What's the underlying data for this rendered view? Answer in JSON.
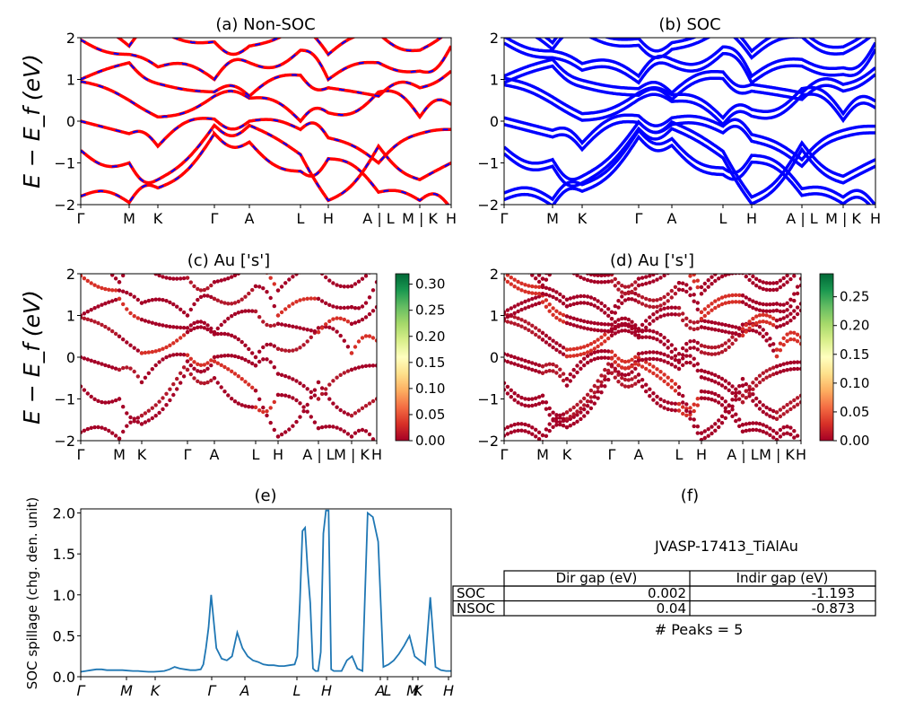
{
  "panels": {
    "a": {
      "title": "(a) Non-SOC"
    },
    "b": {
      "title": "(b) SOC"
    },
    "c": {
      "title": "(c)  Au ['s']"
    },
    "d": {
      "title": "(d) Au ['s']"
    },
    "e": {
      "title": "(e)"
    },
    "f": {
      "title": "(f)"
    }
  },
  "ylabel_energy": "E − E_f (eV)",
  "ylabel_spillage": "SOC spillage (chg. den. unit)",
  "kpath_labels": [
    "Γ",
    "M",
    "K",
    "Γ",
    "A",
    "L",
    "H",
    "A | L",
    "M | K",
    "H"
  ],
  "colors": {
    "nonsoc_solid": "#ff0000",
    "nonsoc_dash": "#0000ff",
    "soc": "#0000ff",
    "spillage": "#1f77b4"
  },
  "chart_data": [
    {
      "id": "a",
      "type": "line",
      "title": "(a) Non-SOC",
      "ylabel": "E − E_f (eV)",
      "ylim": [
        -2,
        2
      ],
      "yticks": [
        -2,
        -1,
        0,
        1,
        2
      ],
      "xticks": [
        "Γ",
        "M",
        "K",
        "Γ",
        "A",
        "L",
        "H",
        "A | L",
        "M | K",
        "H"
      ]
    },
    {
      "id": "b",
      "type": "line",
      "title": "(b) SOC",
      "ylim": [
        -2,
        2
      ],
      "yticks": [
        -2,
        -1,
        0,
        1,
        2
      ],
      "xticks": [
        "Γ",
        "M",
        "K",
        "Γ",
        "A",
        "L",
        "H",
        "A | L",
        "M | K",
        "H"
      ]
    },
    {
      "id": "c",
      "type": "scatter",
      "title": "(c)  Au ['s']",
      "ylabel": "E − E_f (eV)",
      "ylim": [
        -2,
        2
      ],
      "yticks": [
        -2,
        -1,
        0,
        1,
        2
      ],
      "xticks": [
        "Γ",
        "M",
        "K",
        "Γ",
        "A",
        "L",
        "H",
        "A | L",
        "M | K",
        "H"
      ],
      "colorbar": {
        "range": [
          0.0,
          0.32
        ],
        "ticks": [
          "0.00",
          "0.05",
          "0.10",
          "0.15",
          "0.20",
          "0.25",
          "0.30"
        ],
        "colormap": "RdYlGn"
      }
    },
    {
      "id": "d",
      "type": "scatter",
      "title": "(d) Au ['s']",
      "ylim": [
        -2,
        2
      ],
      "yticks": [
        -2,
        -1,
        0,
        1,
        2
      ],
      "xticks": [
        "Γ",
        "M",
        "K",
        "Γ",
        "A",
        "L",
        "H",
        "A | L",
        "M | K",
        "H"
      ],
      "colorbar": {
        "range": [
          0.0,
          0.29
        ],
        "ticks": [
          "0.00",
          "0.05",
          "0.10",
          "0.15",
          "0.20",
          "0.25"
        ],
        "colormap": "RdYlGn"
      }
    },
    {
      "id": "e",
      "type": "line",
      "title": "(e)",
      "ylabel": "SOC spillage (chg. den. unit)",
      "ylim": [
        0,
        2.05
      ],
      "yticks": [
        "0.0",
        "0.5",
        "1.0",
        "1.5",
        "2.0"
      ],
      "xticks": [
        "Γ",
        "M",
        "K",
        "Γ",
        "A",
        "L",
        "H",
        "A",
        "L",
        "M",
        "K",
        "H"
      ],
      "x": [
        0,
        2,
        4,
        6,
        8,
        10,
        12,
        14,
        16,
        18,
        20,
        22,
        24,
        26,
        28,
        30,
        32,
        34,
        36,
        38,
        40,
        42,
        44,
        46,
        47,
        48,
        49,
        50,
        52,
        54,
        56,
        58,
        60,
        62,
        64,
        66,
        68,
        70,
        72,
        74,
        76,
        78,
        80,
        82,
        83,
        84,
        85,
        86,
        87,
        88,
        89,
        90,
        91,
        92,
        93,
        94,
        95,
        96,
        97,
        98,
        100,
        102,
        104,
        106,
        108,
        110,
        112,
        114,
        116,
        118,
        120,
        122,
        124,
        126,
        128,
        130,
        131,
        132,
        134,
        136,
        138,
        140,
        142
      ],
      "y": [
        0.06,
        0.07,
        0.08,
        0.09,
        0.09,
        0.08,
        0.08,
        0.08,
        0.08,
        0.075,
        0.07,
        0.07,
        0.065,
        0.06,
        0.06,
        0.065,
        0.07,
        0.09,
        0.12,
        0.1,
        0.09,
        0.08,
        0.08,
        0.09,
        0.15,
        0.35,
        0.6,
        1.0,
        0.35,
        0.22,
        0.2,
        0.25,
        0.54,
        0.35,
        0.25,
        0.2,
        0.18,
        0.15,
        0.14,
        0.14,
        0.13,
        0.13,
        0.14,
        0.15,
        0.25,
        0.9,
        1.78,
        1.82,
        1.3,
        0.9,
        0.1,
        0.07,
        0.07,
        0.3,
        1.75,
        2.03,
        2.03,
        0.09,
        0.07,
        0.07,
        0.07,
        0.2,
        0.25,
        0.1,
        0.07,
        2.0,
        1.95,
        1.65,
        0.12,
        0.15,
        0.2,
        0.28,
        0.38,
        0.5,
        0.25,
        0.2,
        0.18,
        0.15,
        0.97,
        0.12,
        0.08,
        0.07,
        0.07
      ]
    },
    {
      "id": "f",
      "type": "table",
      "title": "(f)",
      "header": [
        "",
        "Dir gap (eV)",
        "Indir gap (eV)"
      ],
      "rows": [
        [
          "SOC",
          "0.002",
          "-1.193"
        ],
        [
          "NSOC",
          "0.04",
          "-0.873"
        ]
      ]
    }
  ],
  "table_f": {
    "caption": "JVASP-17413_TiAlAu",
    "col_dir": "Dir gap (eV)",
    "col_indir": "Indir gap (eV)",
    "soc_label": "SOC",
    "soc_dir": "0.002",
    "soc_indir": "-1.193",
    "nsoc_label": "NSOC",
    "nsoc_dir": "0.04",
    "nsoc_indir": "-0.873",
    "peaks": "# Peaks = 5"
  }
}
